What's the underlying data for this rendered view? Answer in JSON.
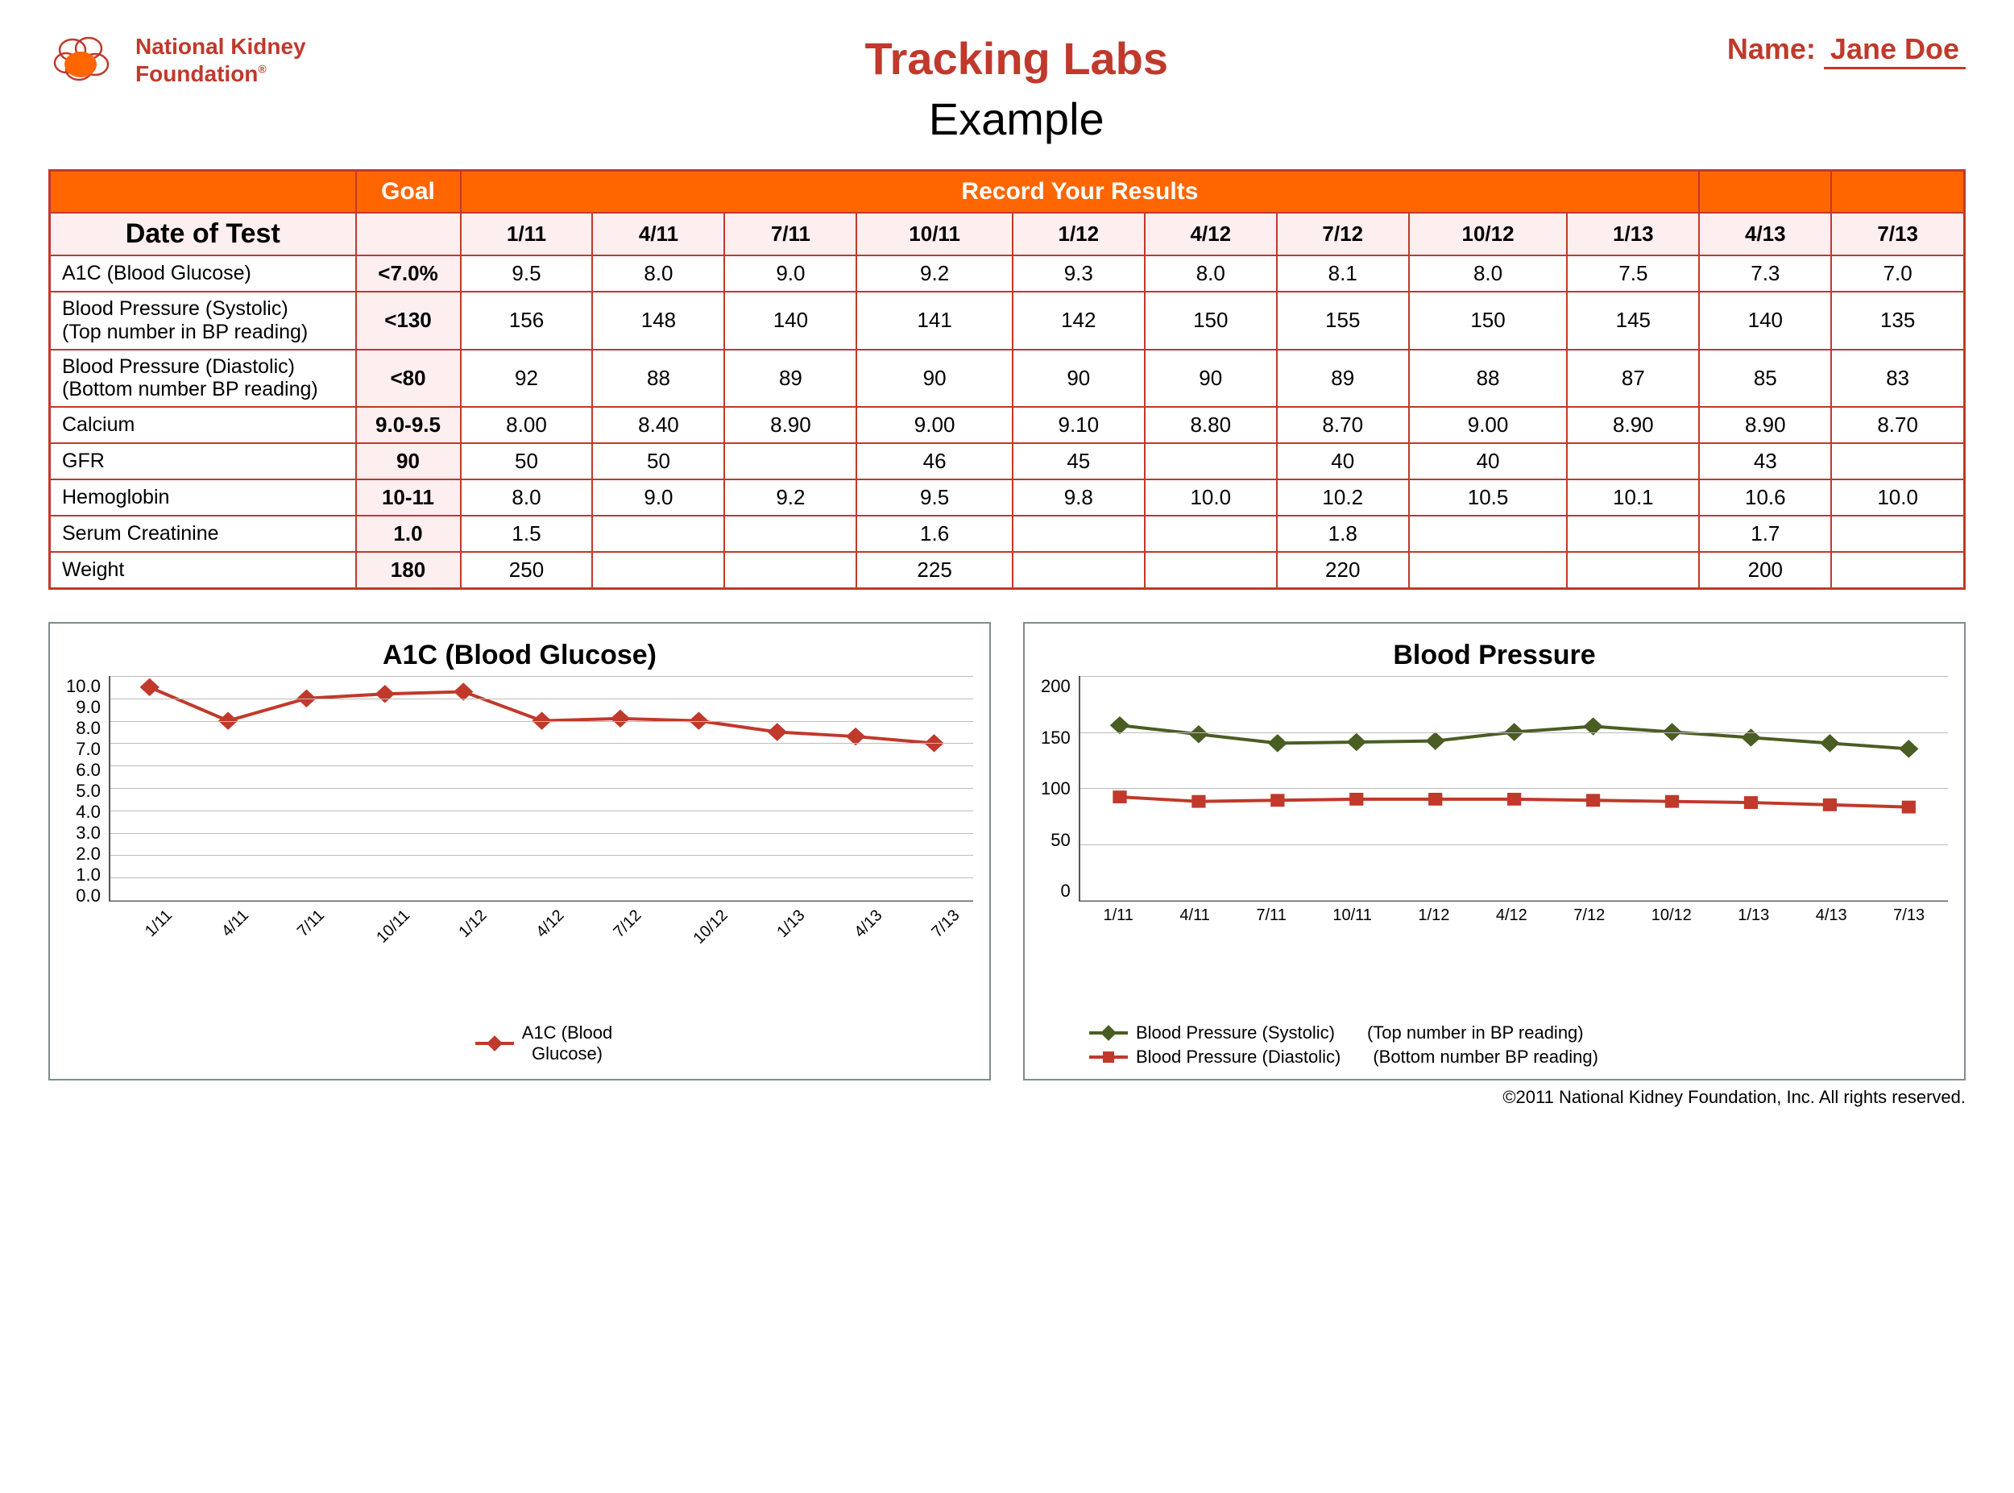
{
  "org": {
    "name_line1": "National Kidney",
    "name_line2": "Foundation",
    "logo_color_fill": "#ff6600",
    "logo_color_stroke": "#c0392b"
  },
  "header": {
    "title": "Tracking Labs",
    "subtitle": "Example",
    "name_label": "Name:",
    "patient_name": "Jane Doe",
    "title_color": "#c0392b"
  },
  "table": {
    "border_color": "#c0392b",
    "header_bg": "#ff6600",
    "header_fg": "#ffffff",
    "tint_bg": "#fdeef0",
    "col_goal": "Goal",
    "col_record": "Record  Your Results",
    "date_label": "Date of Test",
    "dates": [
      "1/11",
      "4/11",
      "7/11",
      "10/11",
      "1/12",
      "4/12",
      "7/12",
      "10/12",
      "1/13",
      "4/13",
      "7/13"
    ],
    "rows": [
      {
        "label": "A1C (Blood Glucose)",
        "goal": "<7.0%",
        "vals": [
          "9.5",
          "8.0",
          "9.0",
          "9.2",
          "9.3",
          "8.0",
          "8.1",
          "8.0",
          "7.5",
          "7.3",
          "7.0"
        ]
      },
      {
        "label": "Blood Pressure (Systolic)\n(Top number in BP reading)",
        "goal": "<130",
        "vals": [
          "156",
          "148",
          "140",
          "141",
          "142",
          "150",
          "155",
          "150",
          "145",
          "140",
          "135"
        ]
      },
      {
        "label": "Blood Pressure (Diastolic)\n(Bottom number BP reading)",
        "goal": "<80",
        "vals": [
          "92",
          "88",
          "89",
          "90",
          "90",
          "90",
          "89",
          "88",
          "87",
          "85",
          "83"
        ]
      },
      {
        "label": "Calcium",
        "goal": "9.0-9.5",
        "vals": [
          "8.00",
          "8.40",
          "8.90",
          "9.00",
          "9.10",
          "8.80",
          "8.70",
          "9.00",
          "8.90",
          "8.90",
          "8.70"
        ]
      },
      {
        "label": "GFR",
        "goal": "90",
        "vals": [
          "50",
          "50",
          "",
          "46",
          "45",
          "",
          "40",
          "40",
          "",
          "43",
          ""
        ]
      },
      {
        "label": "Hemoglobin",
        "goal": "10-11",
        "vals": [
          "8.0",
          "9.0",
          "9.2",
          "9.5",
          "9.8",
          "10.0",
          "10.2",
          "10.5",
          "10.1",
          "10.6",
          "10.0"
        ]
      },
      {
        "label": "Serum Creatinine",
        "goal": "1.0",
        "vals": [
          "1.5",
          "",
          "",
          "1.6",
          "",
          "",
          "1.8",
          "",
          "",
          "1.7",
          ""
        ]
      },
      {
        "label": "Weight",
        "goal": "180",
        "vals": [
          "250",
          "",
          "",
          "225",
          "",
          "",
          "220",
          "",
          "",
          "200",
          ""
        ]
      }
    ]
  },
  "chart_a1c": {
    "type": "line",
    "title": "A1C (Blood Glucose)",
    "x_labels": [
      "1/11",
      "4/11",
      "7/11",
      "10/11",
      "1/12",
      "4/12",
      "7/12",
      "10/12",
      "1/13",
      "4/13",
      "7/13"
    ],
    "y_ticks": [
      "10.0",
      "9.0",
      "8.0",
      "7.0",
      "6.0",
      "5.0",
      "4.0",
      "3.0",
      "2.0",
      "1.0",
      "0.0"
    ],
    "ylim": [
      0,
      10
    ],
    "series": [
      {
        "name": "A1C (Blood Glucose)",
        "color": "#c0392b",
        "marker": "diamond",
        "line_width": 4,
        "values": [
          9.5,
          8.0,
          9.0,
          9.2,
          9.3,
          8.0,
          8.1,
          8.0,
          7.5,
          7.3,
          7.0
        ]
      }
    ],
    "legend_label": "A1C (Blood\nGlucose)",
    "grid_color": "#bbbbbb",
    "background_color": "#ffffff",
    "title_fontsize": 34,
    "label_fontsize": 22
  },
  "chart_bp": {
    "type": "line",
    "title": "Blood Pressure",
    "x_labels": [
      "1/11",
      "4/11",
      "7/11",
      "10/11",
      "1/12",
      "4/12",
      "7/12",
      "10/12",
      "1/13",
      "4/13",
      "7/13"
    ],
    "y_ticks": [
      "200",
      "150",
      "100",
      "50",
      "0"
    ],
    "ylim": [
      0,
      200
    ],
    "series": [
      {
        "name": "Blood Pressure (Systolic)",
        "sub": "(Top number in BP reading)",
        "color": "#4a5d23",
        "marker": "diamond",
        "line_width": 4,
        "values": [
          156,
          148,
          140,
          141,
          142,
          150,
          155,
          150,
          145,
          140,
          135
        ]
      },
      {
        "name": "Blood Pressure (Diastolic)",
        "sub": "(Bottom number BP reading)",
        "color": "#c0392b",
        "marker": "square",
        "line_width": 4,
        "values": [
          92,
          88,
          89,
          90,
          90,
          90,
          89,
          88,
          87,
          85,
          83
        ]
      }
    ],
    "grid_color": "#bbbbbb",
    "background_color": "#ffffff",
    "title_fontsize": 34,
    "label_fontsize": 22
  },
  "footer": {
    "text": "©2011 National Kidney Foundation, Inc. All rights  reserved."
  }
}
